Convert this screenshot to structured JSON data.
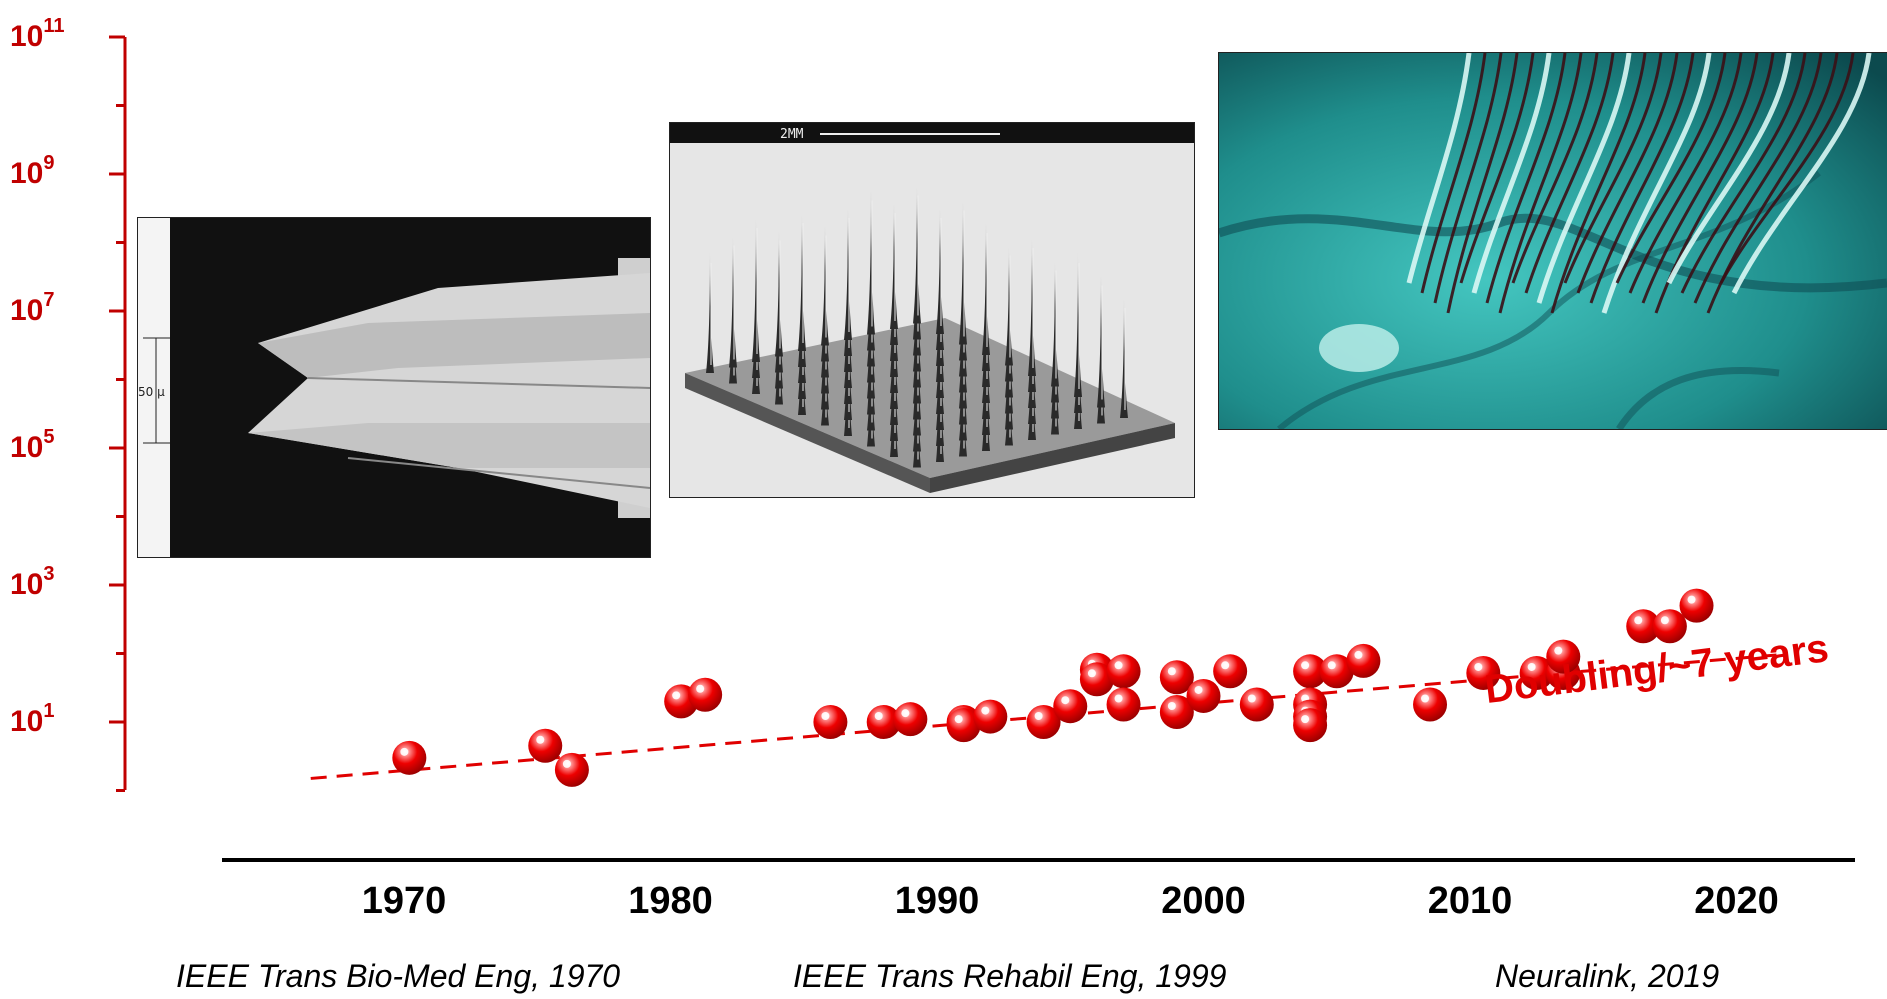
{
  "chart_data": {
    "type": "scatter",
    "title": "",
    "xlabel": "",
    "ylabel": "",
    "y_scale": "log",
    "ylim": [
      0.1,
      100000000000
    ],
    "xlim": [
      1962,
      2027
    ],
    "x_ticks": [
      {
        "value": 1970,
        "label": "1970"
      },
      {
        "value": 1980,
        "label": "1980"
      },
      {
        "value": 1990,
        "label": "1990"
      },
      {
        "value": 2000,
        "label": "2000"
      },
      {
        "value": 2010,
        "label": "2010"
      },
      {
        "value": 2020,
        "label": "2020"
      }
    ],
    "y_ticks": [
      {
        "value": 10,
        "base": "10",
        "exp": "1"
      },
      {
        "value": 1000,
        "base": "10",
        "exp": "3"
      },
      {
        "value": 100000,
        "base": "10",
        "exp": "5"
      },
      {
        "value": 10000000,
        "base": "10",
        "exp": "7"
      },
      {
        "value": 1000000000,
        "base": "10",
        "exp": "9"
      },
      {
        "value": 100000000000,
        "base": "10",
        "exp": "11"
      }
    ],
    "marker_color": "#e00000",
    "axis_color": "#c00000",
    "points": [
      {
        "x": 1970.2,
        "y": 3.0
      },
      {
        "x": 1975.3,
        "y": 4.5
      },
      {
        "x": 1976.3,
        "y": 2.0
      },
      {
        "x": 1980.4,
        "y": 20
      },
      {
        "x": 1981.3,
        "y": 25
      },
      {
        "x": 1986.0,
        "y": 10
      },
      {
        "x": 1988.0,
        "y": 10
      },
      {
        "x": 1989.0,
        "y": 11
      },
      {
        "x": 1991.0,
        "y": 10
      },
      {
        "x": 1991.0,
        "y": 9
      },
      {
        "x": 1992.0,
        "y": 12
      },
      {
        "x": 1994.0,
        "y": 10
      },
      {
        "x": 1995.0,
        "y": 17
      },
      {
        "x": 1996.0,
        "y": 58
      },
      {
        "x": 1996.0,
        "y": 42
      },
      {
        "x": 1997.0,
        "y": 55
      },
      {
        "x": 1997.0,
        "y": 18
      },
      {
        "x": 1999.0,
        "y": 45
      },
      {
        "x": 1999.0,
        "y": 14
      },
      {
        "x": 2000.0,
        "y": 24
      },
      {
        "x": 2001.0,
        "y": 55
      },
      {
        "x": 2002.0,
        "y": 18
      },
      {
        "x": 2004.0,
        "y": 55
      },
      {
        "x": 2004.0,
        "y": 18
      },
      {
        "x": 2004.0,
        "y": 12
      },
      {
        "x": 2004.0,
        "y": 9
      },
      {
        "x": 2005.0,
        "y": 55
      },
      {
        "x": 2006.0,
        "y": 78
      },
      {
        "x": 2008.5,
        "y": 18
      },
      {
        "x": 2010.5,
        "y": 52
      },
      {
        "x": 2012.5,
        "y": 52
      },
      {
        "x": 2013.5,
        "y": 52
      },
      {
        "x": 2013.5,
        "y": 90
      },
      {
        "x": 2016.5,
        "y": 250
      },
      {
        "x": 2017.5,
        "y": 250
      },
      {
        "x": 2018.5,
        "y": 500
      }
    ],
    "trend_line": {
      "x": [
        1966.5,
        2021.5
      ],
      "y": [
        1.5,
        95
      ],
      "label": "Doubling/~7 years"
    },
    "captions": [
      "IEEE Trans Bio-Med Eng, 1970",
      "IEEE Trans Rehabil Eng, 1999",
      "Neuralink, 2019"
    ],
    "inset_labels": {
      "scale_50u": "50 μ",
      "scale_2mm": "2MM"
    }
  }
}
